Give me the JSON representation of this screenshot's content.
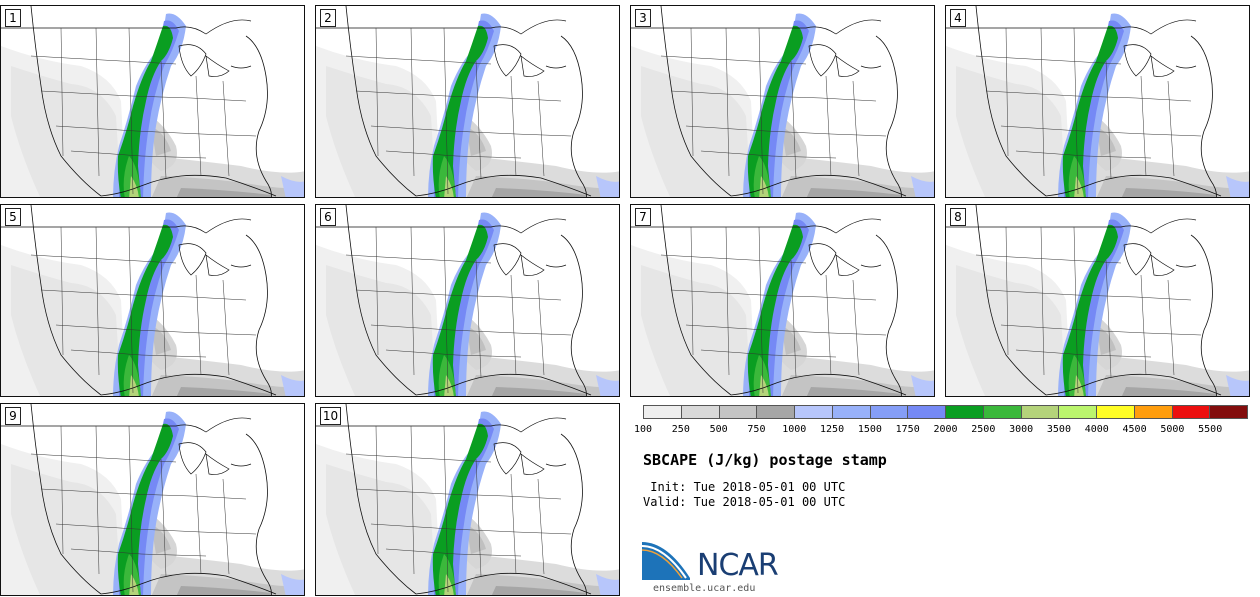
{
  "panels": [
    {
      "label": "1"
    },
    {
      "label": "2"
    },
    {
      "label": "3"
    },
    {
      "label": "4"
    },
    {
      "label": "5"
    },
    {
      "label": "6"
    },
    {
      "label": "7"
    },
    {
      "label": "8"
    },
    {
      "label": "9"
    },
    {
      "label": "10"
    }
  ],
  "colorbar": {
    "colors": [
      "#eeeeee",
      "#d9d9d9",
      "#c4c4c4",
      "#a6a6a6",
      "#b7c6fb",
      "#98b1f9",
      "#859ef7",
      "#7589f5",
      "#0a9e21",
      "#3bb83b",
      "#b4d37a",
      "#bbf56d",
      "#fffd25",
      "#ff9d0d",
      "#ec0f0f",
      "#830d0d"
    ],
    "labels": [
      "100",
      "250",
      "500",
      "750",
      "1000",
      "1250",
      "1500",
      "1750",
      "2000",
      "2500",
      "3000",
      "3500",
      "4000",
      "4500",
      "5000",
      "5500"
    ]
  },
  "title": "SBCAPE (J/kg) postage stamp",
  "init_line": " Init: Tue 2018-05-01 00 UTC",
  "valid_line": "Valid: Tue 2018-05-01 00 UTC",
  "logo": {
    "text": "NCAR",
    "site": "ensemble.ucar.edu"
  }
}
